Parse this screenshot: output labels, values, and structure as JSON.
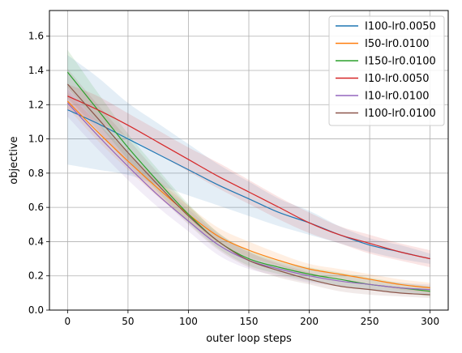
{
  "chart_data": {
    "type": "line",
    "title": "",
    "xlabel": "outer loop steps",
    "ylabel": "objective",
    "xlim": [
      -15,
      315
    ],
    "ylim": [
      0.0,
      1.75
    ],
    "xticks": [
      0,
      50,
      100,
      150,
      200,
      250,
      300
    ],
    "yticks": [
      0.0,
      0.2,
      0.4,
      0.6,
      0.8,
      1.0,
      1.2,
      1.4,
      1.6
    ],
    "xtick_labels": [
      "0",
      "50",
      "100",
      "150",
      "200",
      "250",
      "300"
    ],
    "ytick_labels": [
      "0.0",
      "0.2",
      "0.4",
      "0.6",
      "0.8",
      "1.0",
      "1.2",
      "1.4",
      "1.6"
    ],
    "grid": true,
    "legend_position": "top-right",
    "x": [
      0,
      25,
      50,
      75,
      100,
      125,
      150,
      175,
      200,
      225,
      250,
      275,
      300
    ],
    "series": [
      {
        "name": "I100-lr0.0050",
        "color": "#1f77b4",
        "values": [
          1.17,
          1.09,
          1.0,
          0.91,
          0.82,
          0.73,
          0.65,
          0.57,
          0.51,
          0.44,
          0.38,
          0.34,
          0.3
        ],
        "lower": [
          0.85,
          0.82,
          0.79,
          0.73,
          0.67,
          0.61,
          0.55,
          0.49,
          0.44,
          0.39,
          0.34,
          0.3,
          0.27
        ],
        "upper": [
          1.49,
          1.36,
          1.21,
          1.09,
          0.97,
          0.85,
          0.75,
          0.65,
          0.58,
          0.49,
          0.42,
          0.38,
          0.33
        ]
      },
      {
        "name": "I50-lr0.0100",
        "color": "#ff7f0e",
        "values": [
          1.22,
          1.04,
          0.87,
          0.71,
          0.56,
          0.43,
          0.35,
          0.29,
          0.24,
          0.21,
          0.18,
          0.15,
          0.13
        ],
        "lower": [
          1.18,
          0.99,
          0.82,
          0.66,
          0.52,
          0.39,
          0.31,
          0.26,
          0.21,
          0.18,
          0.15,
          0.12,
          0.1
        ],
        "upper": [
          1.27,
          1.09,
          0.92,
          0.76,
          0.61,
          0.48,
          0.4,
          0.33,
          0.27,
          0.24,
          0.21,
          0.18,
          0.16
        ]
      },
      {
        "name": "I150-lr0.0100",
        "color": "#2ca02c",
        "values": [
          1.39,
          1.17,
          0.95,
          0.75,
          0.56,
          0.4,
          0.3,
          0.25,
          0.21,
          0.18,
          0.15,
          0.13,
          0.11
        ],
        "lower": [
          1.3,
          1.09,
          0.88,
          0.69,
          0.51,
          0.36,
          0.26,
          0.21,
          0.17,
          0.14,
          0.12,
          0.1,
          0.08
        ],
        "upper": [
          1.52,
          1.27,
          1.03,
          0.82,
          0.62,
          0.45,
          0.35,
          0.29,
          0.25,
          0.22,
          0.19,
          0.16,
          0.14
        ]
      },
      {
        "name": "I10-lr0.0050",
        "color": "#d62728",
        "values": [
          1.25,
          1.17,
          1.08,
          0.98,
          0.88,
          0.78,
          0.69,
          0.6,
          0.51,
          0.44,
          0.39,
          0.34,
          0.3
        ],
        "lower": [
          1.17,
          1.1,
          1.01,
          0.91,
          0.81,
          0.71,
          0.62,
          0.53,
          0.45,
          0.39,
          0.33,
          0.29,
          0.25
        ],
        "upper": [
          1.32,
          1.25,
          1.15,
          1.05,
          0.95,
          0.86,
          0.76,
          0.66,
          0.57,
          0.49,
          0.44,
          0.39,
          0.35
        ]
      },
      {
        "name": "I10-lr0.0100",
        "color": "#9467bd",
        "values": [
          1.21,
          1.02,
          0.84,
          0.67,
          0.52,
          0.38,
          0.29,
          0.24,
          0.2,
          0.17,
          0.15,
          0.13,
          0.12
        ],
        "lower": [
          1.13,
          0.94,
          0.76,
          0.6,
          0.46,
          0.32,
          0.24,
          0.2,
          0.16,
          0.14,
          0.12,
          0.1,
          0.09
        ],
        "upper": [
          1.29,
          1.1,
          0.92,
          0.75,
          0.59,
          0.44,
          0.34,
          0.28,
          0.24,
          0.21,
          0.18,
          0.16,
          0.15
        ]
      },
      {
        "name": "I100-lr0.0100",
        "color": "#8c564b",
        "values": [
          1.32,
          1.12,
          0.92,
          0.73,
          0.55,
          0.4,
          0.29,
          0.23,
          0.18,
          0.14,
          0.12,
          0.1,
          0.09
        ],
        "lower": [
          1.24,
          1.05,
          0.85,
          0.67,
          0.5,
          0.35,
          0.25,
          0.19,
          0.15,
          0.11,
          0.09,
          0.08,
          0.07
        ],
        "upper": [
          1.41,
          1.2,
          1.0,
          0.8,
          0.61,
          0.45,
          0.34,
          0.27,
          0.22,
          0.17,
          0.15,
          0.13,
          0.12
        ]
      }
    ]
  }
}
